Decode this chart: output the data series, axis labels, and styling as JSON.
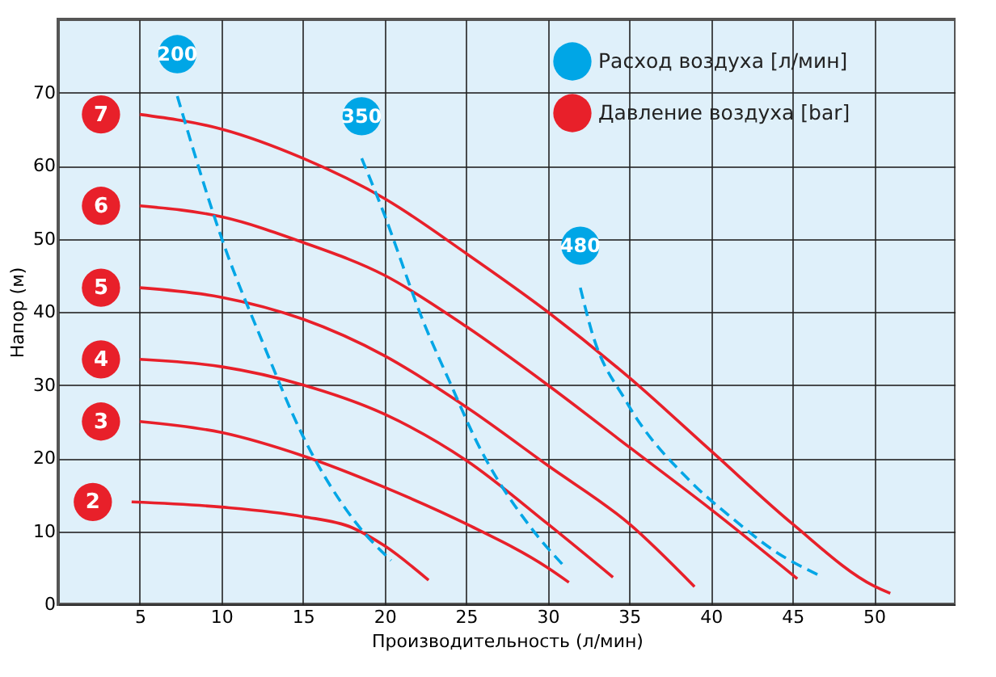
{
  "chart_data": {
    "type": "line",
    "xlabel": "Производительность (л/мин)",
    "ylabel": "Напор (м)",
    "xlim": [
      0,
      55
    ],
    "ylim": [
      0,
      80
    ],
    "xticks": [
      5,
      10,
      15,
      20,
      25,
      30,
      35,
      40,
      45,
      50
    ],
    "yticks": [
      0,
      10,
      20,
      30,
      40,
      50,
      60,
      70
    ],
    "grid": true,
    "annotations": [
      "Расход воздуха [л/мин]",
      "Давление воздуха [bar]"
    ],
    "series": [
      {
        "name": "7",
        "color": "#e8202a",
        "line_style": "solid",
        "x": [
          5,
          10,
          15,
          20,
          25,
          30,
          35,
          40,
          45,
          50,
          51
        ],
        "values": [
          67,
          65,
          61,
          55.5,
          48,
          40,
          31,
          21,
          11,
          2.5,
          1.5
        ]
      },
      {
        "name": "6",
        "color": "#e8202a",
        "line_style": "solid",
        "x": [
          5,
          10,
          15,
          20,
          25,
          30,
          35,
          40,
          45.3
        ],
        "values": [
          54.5,
          53,
          49.5,
          45,
          38,
          30,
          21.5,
          13,
          3.5
        ]
      },
      {
        "name": "5",
        "color": "#e8202a",
        "line_style": "solid",
        "x": [
          5,
          10,
          15,
          20,
          25,
          30,
          35,
          39
        ],
        "values": [
          43.3,
          42,
          39,
          34,
          27,
          19,
          11,
          2.4
        ]
      },
      {
        "name": "4",
        "color": "#e8202a",
        "line_style": "solid",
        "x": [
          5,
          10,
          15,
          20,
          25,
          30,
          34
        ],
        "values": [
          33.5,
          32.5,
          30,
          26,
          19.7,
          11,
          3.7
        ]
      },
      {
        "name": "3",
        "color": "#e8202a",
        "line_style": "solid",
        "x": [
          5,
          10,
          15,
          20,
          25,
          30,
          31.3
        ],
        "values": [
          25,
          23.5,
          20.3,
          16,
          11,
          5,
          3
        ]
      },
      {
        "name": "2",
        "color": "#e8202a",
        "line_style": "solid",
        "x": [
          4.5,
          10,
          15,
          18,
          20,
          22.7
        ],
        "values": [
          14,
          13.3,
          12,
          10.5,
          8,
          3.3
        ]
      },
      {
        "name": "200",
        "color": "#00a6e6",
        "line_style": "dashed",
        "x": [
          7.3,
          10.2,
          12.5,
          15,
          18.3,
          20.4
        ],
        "values": [
          69.5,
          48.9,
          36,
          23,
          11,
          6
        ]
      },
      {
        "name": "350",
        "color": "#00a6e6",
        "line_style": "dashed",
        "x": [
          18.6,
          19.8,
          22.5,
          24,
          25.7,
          29,
          31.1
        ],
        "values": [
          61,
          54.4,
          38,
          30.4,
          22,
          10.4,
          5
        ]
      },
      {
        "name": "480",
        "color": "#00a6e6",
        "line_style": "dashed",
        "x": [
          32,
          32.7,
          34.8,
          38.8,
          41.3,
          43.9,
          46.6
        ],
        "values": [
          43.3,
          37.3,
          27.8,
          16.7,
          11.8,
          7.3,
          4
        ]
      }
    ]
  }
}
